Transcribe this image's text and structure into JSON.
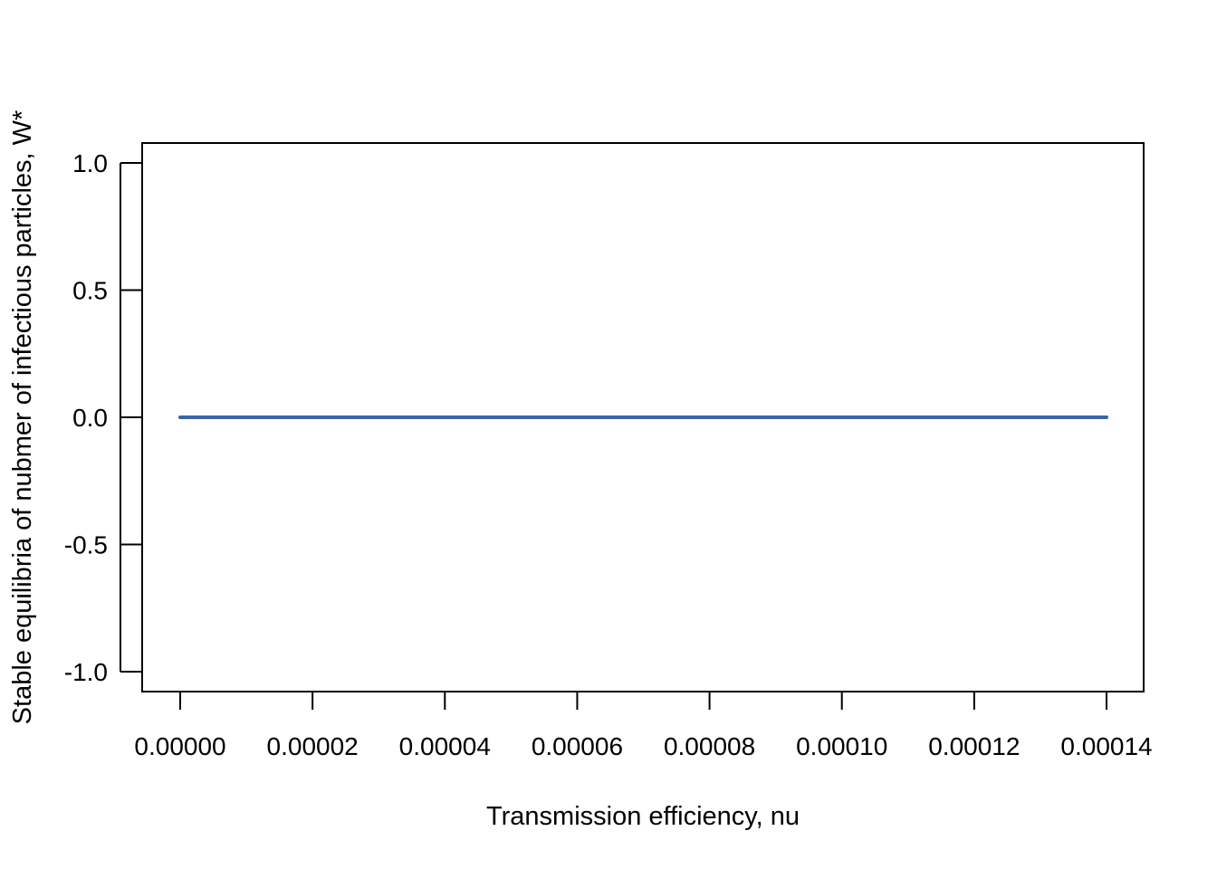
{
  "chart_data": {
    "type": "line",
    "title": "",
    "xlabel": "Transmission efficiency, nu",
    "ylabel": "Stable equilibria of nubmer of infectious particles, W*",
    "xlim": [
      0,
      0.00014
    ],
    "ylim": [
      -1.0,
      1.0
    ],
    "x_ticks": [
      0,
      2e-05,
      4e-05,
      6e-05,
      8e-05,
      0.0001,
      0.00012,
      0.00014
    ],
    "x_tick_labels": [
      "0.00000",
      "0.00002",
      "0.00004",
      "0.00006",
      "0.00008",
      "0.00010",
      "0.00012",
      "0.00014"
    ],
    "y_ticks": [
      -1.0,
      -0.5,
      0.0,
      0.5,
      1.0
    ],
    "y_tick_labels": [
      "-1.0",
      "-0.5",
      "0.0",
      "0.5",
      "1.0"
    ],
    "grid": false,
    "series": [
      {
        "color": "#3a66a8",
        "x": [
          0,
          2e-05,
          4e-05,
          6e-05,
          8e-05,
          0.0001,
          0.00012,
          0.00014
        ],
        "y": [
          0,
          0,
          0,
          0,
          0,
          0,
          0,
          0
        ]
      }
    ]
  }
}
